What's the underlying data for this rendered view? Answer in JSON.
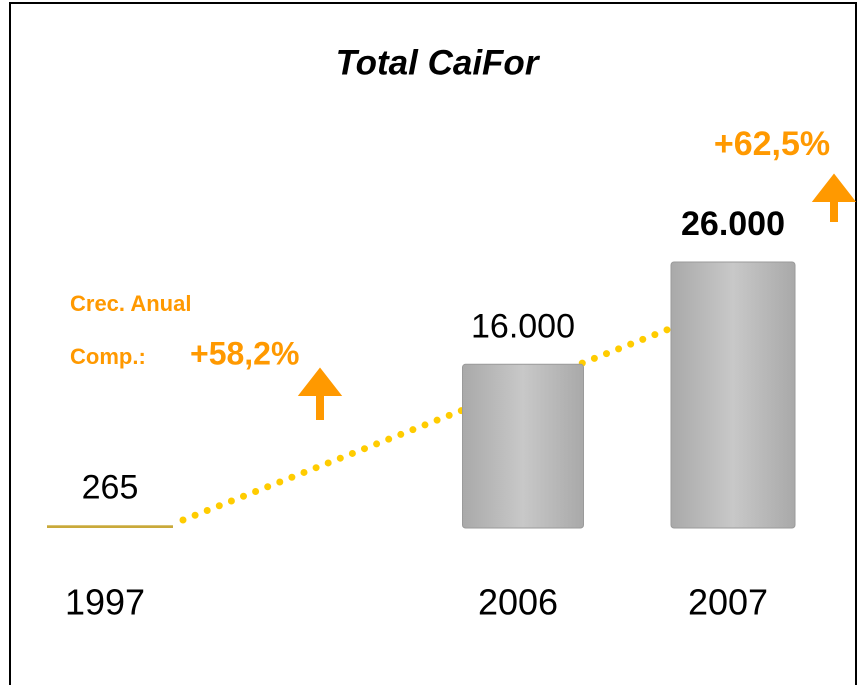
{
  "chart_data": {
    "type": "bar",
    "title": "Total CaiFor",
    "categories": [
      "1997",
      "2006",
      "2007"
    ],
    "values": [
      265,
      16000,
      26000
    ],
    "value_labels": [
      "265",
      "16.000",
      "26.000"
    ],
    "colors": [
      "#c9a93a",
      "#c0c0c0",
      "#c0c0c0"
    ],
    "annotations": [
      "+62,5%",
      "Crec. Anual",
      "Comp.:",
      "+58,2%"
    ]
  }
}
